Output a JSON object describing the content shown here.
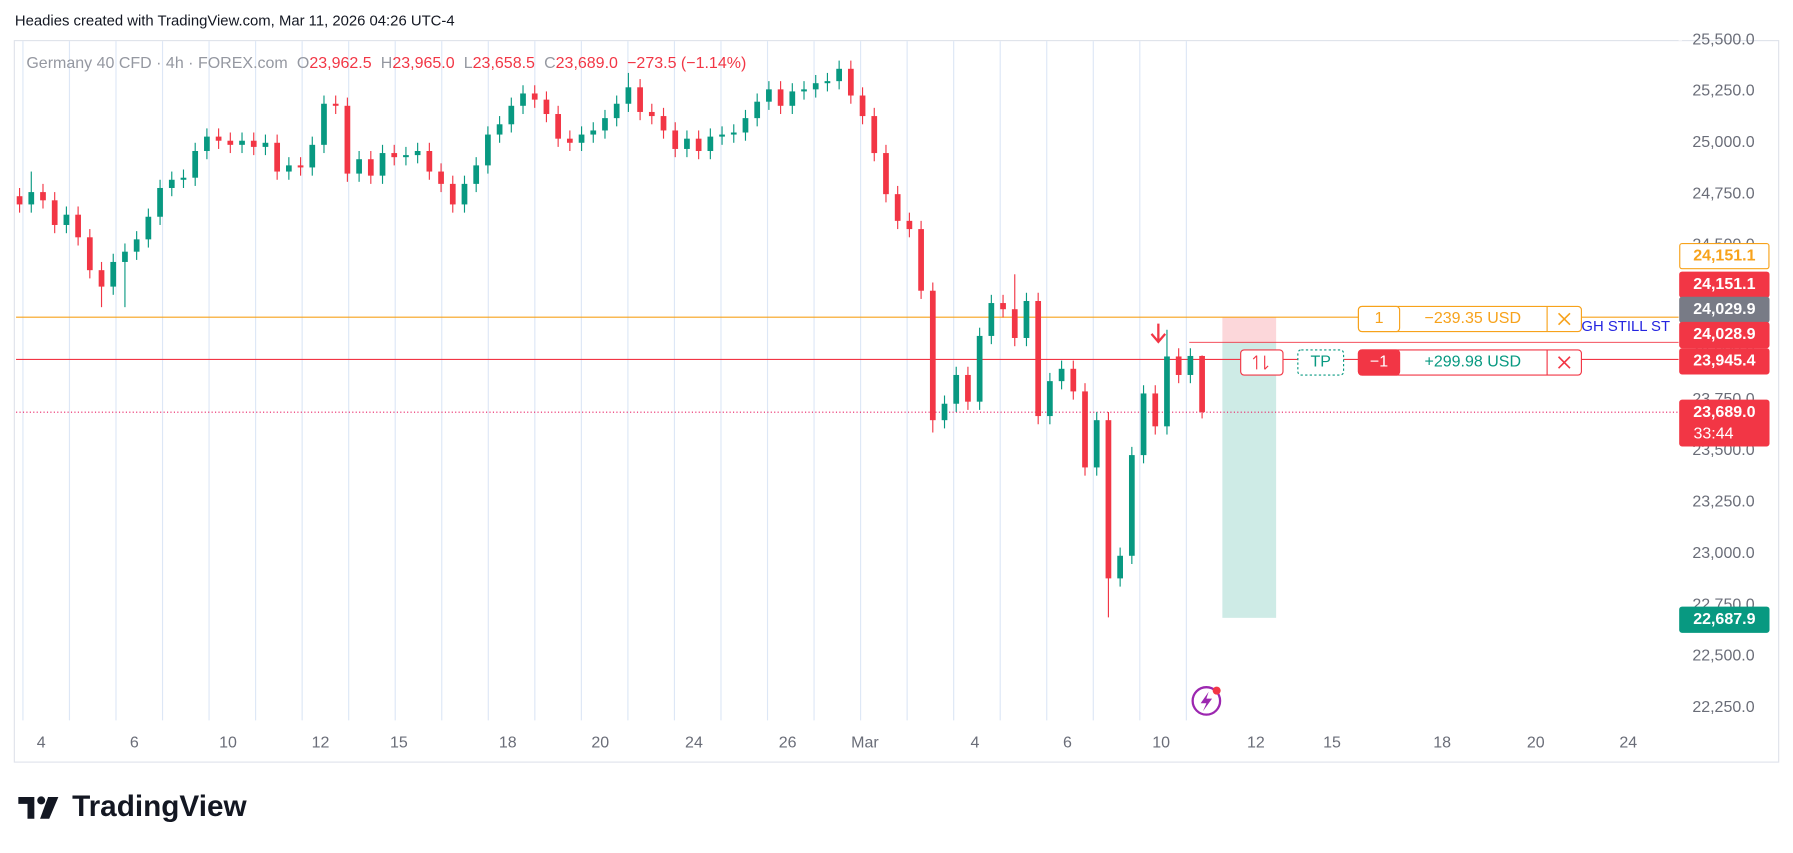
{
  "header": {
    "title": "Headies created with TradingView.com, Mar 11, 2026 04:26 UTC-4"
  },
  "chart_data": {
    "type": "candlestick",
    "symbol": "Germany 40 CFD · 4h · FOREX.com",
    "ohlc_legend": [
      {
        "key": "O",
        "value": "23,962.5"
      },
      {
        "key": "H",
        "value": "23,965.0"
      },
      {
        "key": "L",
        "value": "23,658.5"
      },
      {
        "key": "C",
        "value": "23,689.0"
      }
    ],
    "change": "−273.5 (−1.14%)",
    "up_color": "#089981",
    "down_color": "#f23645",
    "open": [
      24740,
      24700,
      24760,
      24720,
      24600,
      24650,
      24540,
      24380,
      24300,
      24420,
      24470,
      24530,
      24640,
      24780,
      24820,
      24830,
      24960,
      25030,
      25010,
      24990,
      25010,
      24980,
      25000,
      24860,
      24890,
      24880,
      24990,
      25190,
      25180,
      24850,
      24920,
      24840,
      24950,
      24930,
      24940,
      24960,
      24860,
      24800,
      24700,
      24800,
      24890,
      25040,
      25090,
      25180,
      25240,
      25210,
      25140,
      25020,
      25000,
      25040,
      25060,
      25120,
      25190,
      25270,
      25150,
      25130,
      25060,
      24970,
      25020,
      24960,
      25030,
      25040,
      25050,
      25120,
      25200,
      25260,
      25180,
      25250,
      25260,
      25290,
      25300,
      25360,
      25230,
      25130,
      24950,
      24750,
      24620,
      24580,
      24280,
      23650,
      23730,
      23870,
      23740,
      24060,
      24220,
      24190,
      24050,
      24230,
      23670,
      23840,
      23900,
      23790,
      23420,
      23650,
      22880,
      22990,
      23480,
      23780,
      23620,
      23960,
      23870,
      23962.5
    ],
    "high": [
      24780,
      24860,
      24800,
      24760,
      24690,
      24690,
      24580,
      24420,
      24460,
      24510,
      24570,
      24680,
      24820,
      24860,
      24870,
      25000,
      25070,
      25070,
      25050,
      25050,
      25050,
      25040,
      25040,
      24930,
      24930,
      25030,
      25230,
      25230,
      25220,
      24960,
      24960,
      24990,
      24990,
      24980,
      25000,
      25000,
      24900,
      24840,
      24840,
      24930,
      25080,
      25130,
      25220,
      25280,
      25280,
      25250,
      25180,
      25060,
      25080,
      25100,
      25160,
      25230,
      25340,
      25310,
      25190,
      25170,
      25100,
      25060,
      25060,
      25070,
      25080,
      25090,
      25160,
      25240,
      25300,
      25300,
      25290,
      25300,
      25330,
      25340,
      25400,
      25400,
      25270,
      25170,
      24990,
      24790,
      24660,
      24620,
      24320,
      23770,
      23910,
      23910,
      24100,
      24260,
      24260,
      24360,
      24270,
      24270,
      23880,
      23940,
      23940,
      23830,
      23690,
      23690,
      23030,
      23520,
      23820,
      23820,
      24090,
      24000,
      24000,
      23965
    ],
    "low": [
      24660,
      24660,
      24680,
      24560,
      24560,
      24500,
      24340,
      24200,
      24260,
      24200,
      24430,
      24490,
      24600,
      24740,
      24780,
      24790,
      24920,
      24970,
      24950,
      24950,
      24940,
      24940,
      24820,
      24820,
      24840,
      24840,
      24950,
      25140,
      24810,
      24810,
      24800,
      24800,
      24890,
      24890,
      24900,
      24820,
      24760,
      24660,
      24660,
      24760,
      24850,
      25000,
      25050,
      25140,
      25170,
      25100,
      24980,
      24960,
      24960,
      25000,
      25020,
      25080,
      25150,
      25110,
      25090,
      25020,
      24930,
      24930,
      24920,
      24920,
      24990,
      25000,
      25010,
      25080,
      25160,
      25140,
      25140,
      25210,
      25220,
      25250,
      25260,
      25190,
      25090,
      24910,
      24710,
      24580,
      24540,
      24240,
      23590,
      23610,
      23690,
      23700,
      23700,
      24020,
      24150,
      24010,
      24010,
      23630,
      23630,
      23800,
      23750,
      23380,
      23380,
      22690,
      22840,
      22950,
      23440,
      23580,
      23580,
      23830,
      23830,
      23658.5
    ],
    "close": [
      24700,
      24760,
      24720,
      24600,
      24650,
      24540,
      24380,
      24300,
      24420,
      24470,
      24530,
      24640,
      24780,
      24820,
      24830,
      24960,
      25030,
      25010,
      24990,
      25010,
      24980,
      25000,
      24860,
      24890,
      24880,
      24990,
      25190,
      25180,
      24850,
      24920,
      24840,
      24950,
      24930,
      24940,
      24960,
      24860,
      24800,
      24700,
      24800,
      24890,
      25040,
      25090,
      25180,
      25240,
      25210,
      25140,
      25020,
      25000,
      25040,
      25060,
      25120,
      25190,
      25270,
      25150,
      25130,
      25060,
      24970,
      25020,
      24960,
      25030,
      25040,
      25050,
      25120,
      25200,
      25260,
      25180,
      25250,
      25260,
      25290,
      25300,
      25360,
      25230,
      25130,
      24950,
      24750,
      24620,
      24580,
      24280,
      23650,
      23730,
      23870,
      23740,
      24060,
      24220,
      24190,
      24050,
      24230,
      23670,
      23840,
      23900,
      23790,
      23420,
      23650,
      22880,
      22990,
      23480,
      23780,
      23620,
      23960,
      23870,
      23962.5,
      23689
    ],
    "xlim": [
      -0.3,
      141.7
    ],
    "xticks": [
      {
        "value": 1.85,
        "label": "4"
      },
      {
        "value": 9.8,
        "label": "6"
      },
      {
        "value": 17.8,
        "label": "10"
      },
      {
        "value": 25.7,
        "label": "12"
      },
      {
        "value": 32.4,
        "label": "15"
      },
      {
        "value": 41.7,
        "label": "18"
      },
      {
        "value": 49.6,
        "label": "20"
      },
      {
        "value": 57.6,
        "label": "24"
      },
      {
        "value": 65.6,
        "label": "26"
      },
      {
        "value": 72.2,
        "label": "Mar"
      },
      {
        "value": 81.6,
        "label": "4"
      },
      {
        "value": 89.5,
        "label": "6"
      },
      {
        "value": 97.5,
        "label": "10"
      },
      {
        "value": 105.6,
        "label": "12"
      },
      {
        "value": 112.1,
        "label": "15"
      },
      {
        "value": 121.5,
        "label": "18"
      },
      {
        "value": 129.5,
        "label": "20"
      },
      {
        "value": 137.4,
        "label": "24"
      }
    ],
    "ylim": [
      22189,
      25489
    ],
    "yticks": [
      {
        "value": 22250,
        "label": "22,250.0"
      },
      {
        "value": 22500,
        "label": "22,500.0"
      },
      {
        "value": 22750,
        "label": "22,750.0"
      },
      {
        "value": 23000,
        "label": "23,000.0"
      },
      {
        "value": 23250,
        "label": "23,250.0"
      },
      {
        "value": 23500,
        "label": "23,500.0"
      },
      {
        "value": 23750,
        "label": "23,750.0"
      },
      {
        "value": 24000,
        "label": "24,000.0"
      },
      {
        "value": 24250,
        "label": "24,250.0"
      },
      {
        "value": 24500,
        "label": "24,500.0"
      },
      {
        "value": 24750,
        "label": "24,750.0"
      },
      {
        "value": 25000,
        "label": "25,000.0"
      },
      {
        "value": 25250,
        "label": "25,250.0"
      },
      {
        "value": 25500,
        "label": "25,500.0"
      }
    ],
    "grid": true,
    "lines": [
      {
        "value": 24151.1,
        "color": "#f7a21b",
        "style": "solid"
      },
      {
        "value": 24028.9,
        "color": "#f23645",
        "style": "thin"
      },
      {
        "value": 23945.4,
        "color": "#f23645",
        "style": "solid"
      },
      {
        "value": 23689.0,
        "color": "#f23645",
        "style": "dotted"
      }
    ],
    "position": {
      "stop": 24151.1,
      "entry": 24029.9,
      "target": 22687.9
    },
    "price_tags": [
      {
        "label": "24,151.1",
        "color": "#f7a21b",
        "filled": false
      },
      {
        "label": "24,151.1",
        "color": "#f23645",
        "filled": true
      },
      {
        "label": "24,029.9",
        "color": "#787b86",
        "filled": true
      },
      {
        "label": "24,028.9",
        "color": "#f23645",
        "filled": true
      },
      {
        "label": "23,945.4",
        "color": "#f23645",
        "filled": true
      },
      {
        "label": "23,689.0",
        "color": "#f23645",
        "filled": true,
        "countdown": "33:44"
      },
      {
        "label": "22,687.9",
        "color": "#089981",
        "filled": true
      }
    ],
    "orders": [
      {
        "qty": "1",
        "pnl": "−239.35 USD",
        "color": "#f7a21b"
      },
      {
        "qty": "−1",
        "pnl": "+299.98 USD",
        "color": "#f23645",
        "tp": "TP"
      }
    ],
    "annotation": "GH STILL ST"
  },
  "footer": {
    "brand": "TradingView"
  }
}
